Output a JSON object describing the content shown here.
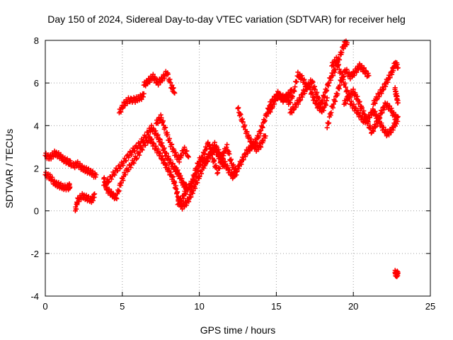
{
  "chart_data": {
    "type": "scatter",
    "title": "Day 150 of 2024, Sidereal Day-to-day VTEC variation (SDTVAR) for receiver helg",
    "xlabel": "GPS time / hours",
    "ylabel": "SDTVAR / TECUs",
    "xlim": [
      0,
      25
    ],
    "ylim": [
      -4,
      8
    ],
    "xticks": [
      0,
      5,
      10,
      15,
      20,
      25
    ],
    "xtick_labels": [
      "0",
      "5",
      "10",
      "15",
      "20",
      "25"
    ],
    "yticks": [
      -4,
      -2,
      0,
      2,
      4,
      6,
      8
    ],
    "ytick_labels": [
      "-4",
      "-2",
      "0",
      "2",
      "4",
      "6",
      "8"
    ],
    "grid": true,
    "marker": "plus",
    "color": "#ff0000",
    "series": [
      {
        "name": "SDTVAR",
        "segments": [
          [
            [
              0.0,
              2.6
            ],
            [
              0.3,
              2.5
            ],
            [
              0.6,
              2.7
            ],
            [
              0.9,
              2.6
            ],
            [
              1.2,
              2.4
            ],
            [
              1.5,
              2.3
            ],
            [
              1.7,
              2.2
            ]
          ],
          [
            [
              0.0,
              1.7
            ],
            [
              0.3,
              1.6
            ],
            [
              0.6,
              1.3
            ],
            [
              0.9,
              1.2
            ],
            [
              1.2,
              1.1
            ],
            [
              1.5,
              1.1
            ],
            [
              1.6,
              1.2
            ]
          ],
          [
            [
              1.8,
              2.1
            ],
            [
              2.1,
              2.2
            ],
            [
              2.4,
              2.0
            ],
            [
              2.7,
              1.9
            ],
            [
              3.0,
              1.8
            ],
            [
              3.3,
              1.6
            ]
          ],
          [
            [
              1.95,
              0.0
            ],
            [
              2.1,
              0.5
            ],
            [
              2.4,
              0.7
            ],
            [
              2.7,
              0.6
            ],
            [
              3.0,
              0.5
            ],
            [
              3.2,
              0.7
            ]
          ],
          [
            [
              3.8,
              1.2
            ],
            [
              4.2,
              1.5
            ],
            [
              4.6,
              1.9
            ],
            [
              5.0,
              2.2
            ],
            [
              5.4,
              2.6
            ],
            [
              5.8,
              2.9
            ],
            [
              6.2,
              3.2
            ],
            [
              6.6,
              3.6
            ],
            [
              6.9,
              3.9
            ],
            [
              7.2,
              3.6
            ],
            [
              7.5,
              3.2
            ],
            [
              7.8,
              2.7
            ],
            [
              8.1,
              2.3
            ],
            [
              8.4,
              2.0
            ],
            [
              8.6,
              1.8
            ],
            [
              8.8,
              1.5
            ],
            [
              9.0,
              1.2
            ],
            [
              9.2,
              1.1
            ]
          ],
          [
            [
              3.8,
              1.5
            ],
            [
              4.0,
              1.0
            ],
            [
              4.3,
              0.8
            ],
            [
              4.6,
              0.6
            ],
            [
              4.9,
              1.3
            ],
            [
              5.2,
              1.8
            ],
            [
              5.6,
              2.2
            ],
            [
              6.0,
              2.6
            ],
            [
              6.4,
              3.1
            ],
            [
              6.8,
              3.4
            ],
            [
              7.1,
              3.0
            ],
            [
              7.4,
              2.7
            ],
            [
              7.7,
              2.3
            ],
            [
              8.0,
              1.9
            ],
            [
              8.3,
              1.5
            ],
            [
              8.5,
              1.0
            ],
            [
              8.7,
              0.4
            ],
            [
              8.9,
              0.2
            ],
            [
              9.2,
              0.4
            ],
            [
              9.5,
              0.8
            ],
            [
              9.8,
              1.3
            ],
            [
              10.1,
              1.8
            ],
            [
              10.4,
              2.3
            ],
            [
              10.7,
              2.6
            ],
            [
              11.0,
              2.9
            ],
            [
              11.3,
              2.5
            ],
            [
              11.6,
              2.1
            ]
          ],
          [
            [
              4.8,
              4.6
            ],
            [
              5.1,
              5.0
            ],
            [
              5.4,
              5.2
            ],
            [
              5.8,
              5.2
            ],
            [
              6.1,
              5.3
            ],
            [
              6.4,
              5.4
            ]
          ],
          [
            [
              6.4,
              5.9
            ],
            [
              6.7,
              6.1
            ],
            [
              7.0,
              6.3
            ],
            [
              7.3,
              6.0
            ],
            [
              7.6,
              6.2
            ],
            [
              7.9,
              6.5
            ],
            [
              8.2,
              5.8
            ],
            [
              8.4,
              5.6
            ]
          ],
          [
            [
              7.2,
              4.1
            ],
            [
              7.5,
              4.4
            ],
            [
              7.8,
              3.8
            ],
            [
              8.1,
              3.2
            ],
            [
              8.4,
              2.7
            ],
            [
              8.7,
              2.4
            ],
            [
              9.0,
              2.9
            ],
            [
              9.3,
              2.6
            ]
          ],
          [
            [
              8.6,
              0.3
            ],
            [
              8.9,
              0.6
            ],
            [
              9.2,
              1.0
            ],
            [
              9.5,
              1.3
            ],
            [
              9.8,
              2.0
            ],
            [
              10.1,
              2.5
            ],
            [
              10.4,
              2.2
            ],
            [
              10.7,
              2.8
            ],
            [
              11.0,
              3.1
            ],
            [
              11.3,
              2.7
            ],
            [
              11.6,
              2.3
            ],
            [
              11.9,
              1.9
            ],
            [
              12.2,
              1.6
            ],
            [
              12.5,
              2.0
            ],
            [
              12.8,
              2.4
            ],
            [
              13.1,
              2.8
            ],
            [
              13.4,
              3.0
            ],
            [
              13.7,
              3.3
            ],
            [
              14.0,
              3.8
            ],
            [
              14.3,
              4.4
            ],
            [
              14.6,
              5.0
            ],
            [
              14.9,
              5.3
            ],
            [
              15.2,
              5.4
            ],
            [
              15.5,
              5.3
            ],
            [
              15.8,
              5.2
            ]
          ],
          [
            [
              9.4,
              1.0
            ],
            [
              9.7,
              1.6
            ],
            [
              10.0,
              2.1
            ],
            [
              10.3,
              2.7
            ],
            [
              10.6,
              3.2
            ],
            [
              10.9,
              2.4
            ],
            [
              11.2,
              1.8
            ],
            [
              11.5,
              2.6
            ],
            [
              11.8,
              3.0
            ],
            [
              12.1,
              2.2
            ],
            [
              12.4,
              1.8
            ]
          ],
          [
            [
              12.5,
              4.8
            ],
            [
              12.8,
              4.2
            ],
            [
              13.1,
              3.6
            ],
            [
              13.4,
              3.2
            ],
            [
              13.7,
              2.9
            ],
            [
              14.0,
              3.1
            ],
            [
              14.3,
              3.6
            ]
          ],
          [
            [
              14.5,
              4.6
            ],
            [
              14.8,
              5.0
            ],
            [
              15.1,
              5.5
            ],
            [
              15.4,
              5.2
            ],
            [
              15.7,
              5.4
            ],
            [
              16.0,
              5.6
            ]
          ],
          [
            [
              15.8,
              5.0
            ],
            [
              16.1,
              5.5
            ],
            [
              16.4,
              6.4
            ],
            [
              16.7,
              6.2
            ],
            [
              17.0,
              5.8
            ],
            [
              17.3,
              6.1
            ],
            [
              17.6,
              5.5
            ],
            [
              17.9,
              5.0
            ],
            [
              18.2,
              5.6
            ],
            [
              18.5,
              6.2
            ],
            [
              18.8,
              6.6
            ],
            [
              19.1,
              7.2
            ],
            [
              19.4,
              7.8
            ],
            [
              19.6,
              7.9
            ]
          ],
          [
            [
              15.9,
              4.6
            ],
            [
              16.2,
              4.9
            ],
            [
              16.5,
              5.2
            ],
            [
              16.8,
              5.6
            ],
            [
              17.1,
              5.9
            ],
            [
              17.4,
              5.3
            ],
            [
              17.7,
              4.9
            ],
            [
              18.0,
              4.7
            ],
            [
              18.3,
              5.2
            ]
          ],
          [
            [
              18.3,
              3.9
            ],
            [
              18.6,
              4.8
            ],
            [
              18.9,
              5.4
            ],
            [
              19.2,
              6.1
            ],
            [
              19.5,
              6.6
            ],
            [
              19.8,
              6.3
            ],
            [
              20.1,
              6.5
            ],
            [
              20.4,
              6.8
            ],
            [
              20.7,
              6.6
            ],
            [
              21.0,
              6.3
            ]
          ],
          [
            [
              18.6,
              6.8
            ],
            [
              18.9,
              7.1
            ],
            [
              19.2,
              6.4
            ],
            [
              19.5,
              5.8
            ],
            [
              19.8,
              5.1
            ],
            [
              20.1,
              4.8
            ],
            [
              20.4,
              4.5
            ],
            [
              20.7,
              4.2
            ],
            [
              21.0,
              4.4
            ],
            [
              21.3,
              4.7
            ],
            [
              21.6,
              4.3
            ],
            [
              21.9,
              3.9
            ],
            [
              22.2,
              3.6
            ],
            [
              22.5,
              3.8
            ],
            [
              22.8,
              4.2
            ]
          ],
          [
            [
              19.4,
              5.0
            ],
            [
              19.7,
              5.4
            ],
            [
              20.0,
              5.6
            ],
            [
              20.3,
              5.2
            ],
            [
              20.6,
              4.7
            ],
            [
              20.9,
              4.2
            ],
            [
              21.2,
              3.7
            ],
            [
              21.5,
              4.1
            ],
            [
              21.8,
              4.6
            ],
            [
              22.1,
              5.0
            ],
            [
              22.4,
              4.8
            ],
            [
              22.7,
              4.4
            ],
            [
              22.9,
              4.3
            ]
          ],
          [
            [
              21.3,
              5.0
            ],
            [
              21.6,
              5.4
            ],
            [
              21.9,
              5.7
            ],
            [
              22.2,
              6.1
            ],
            [
              22.5,
              6.5
            ],
            [
              22.7,
              6.9
            ],
            [
              22.9,
              6.8
            ]
          ],
          [
            [
              22.7,
              5.7
            ],
            [
              22.8,
              5.4
            ],
            [
              22.9,
              5.1
            ]
          ],
          [
            [
              22.7,
              -2.9
            ],
            [
              22.8,
              -3.0
            ],
            [
              22.9,
              -2.9
            ]
          ]
        ]
      }
    ]
  }
}
